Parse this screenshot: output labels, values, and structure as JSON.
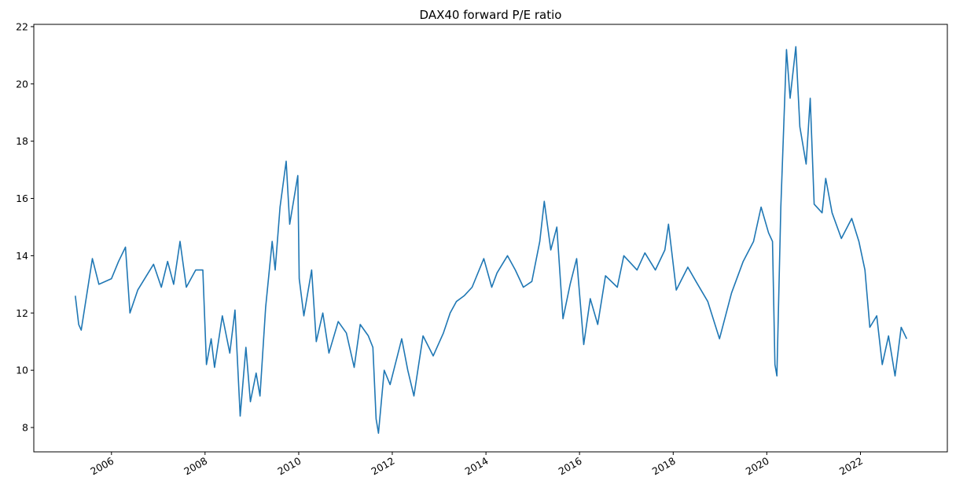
{
  "chart_data": {
    "type": "line",
    "title": "DAX40 forward P/E ratio",
    "xlabel": "",
    "ylabel": "",
    "x_axis": "date",
    "xlim": [
      "2004-05-05",
      "2023-11-10"
    ],
    "ylim": [
      7.15,
      22.08
    ],
    "x_ticks": [
      "2006",
      "2008",
      "2010",
      "2012",
      "2014",
      "2016",
      "2018",
      "2020",
      "2022"
    ],
    "y_ticks": [
      8,
      10,
      12,
      14,
      16,
      18,
      20,
      22
    ],
    "grid": false,
    "legend": "none",
    "line_color": "#1f77b4",
    "series": [
      {
        "points": [
          [
            "2005-03-25",
            12.6
          ],
          [
            "2005-04-20",
            11.6
          ],
          [
            "2005-05-10",
            11.4
          ],
          [
            "2005-08-05",
            13.9
          ],
          [
            "2005-09-25",
            13.0
          ],
          [
            "2006-01-01",
            13.2
          ],
          [
            "2006-02-25",
            13.8
          ],
          [
            "2006-04-20",
            14.3
          ],
          [
            "2006-05-25",
            12.0
          ],
          [
            "2006-07-25",
            12.8
          ],
          [
            "2006-10-01",
            13.3
          ],
          [
            "2006-11-25",
            13.7
          ],
          [
            "2007-01-25",
            12.9
          ],
          [
            "2007-03-15",
            13.8
          ],
          [
            "2007-05-01",
            13.0
          ],
          [
            "2007-06-20",
            14.5
          ],
          [
            "2007-08-08",
            12.9
          ],
          [
            "2007-10-20",
            13.5
          ],
          [
            "2007-12-15",
            13.5
          ],
          [
            "2008-01-12",
            10.2
          ],
          [
            "2008-02-18",
            11.1
          ],
          [
            "2008-03-15",
            10.1
          ],
          [
            "2008-05-15",
            11.9
          ],
          [
            "2008-07-12",
            10.6
          ],
          [
            "2008-08-22",
            12.1
          ],
          [
            "2008-10-01",
            8.4
          ],
          [
            "2008-11-15",
            10.8
          ],
          [
            "2008-12-20",
            8.9
          ],
          [
            "2009-02-03",
            9.9
          ],
          [
            "2009-03-05",
            9.1
          ],
          [
            "2009-04-18",
            12.2
          ],
          [
            "2009-06-08",
            14.5
          ],
          [
            "2009-07-01",
            13.5
          ],
          [
            "2009-08-08",
            15.7
          ],
          [
            "2009-09-25",
            17.3
          ],
          [
            "2009-10-23",
            15.1
          ],
          [
            "2009-12-25",
            16.8
          ],
          [
            "2010-01-05",
            13.2
          ],
          [
            "2010-02-10",
            11.9
          ],
          [
            "2010-04-12",
            13.5
          ],
          [
            "2010-05-18",
            11.0
          ],
          [
            "2010-07-08",
            12.0
          ],
          [
            "2010-08-25",
            10.6
          ],
          [
            "2010-11-05",
            11.7
          ],
          [
            "2011-01-08",
            11.3
          ],
          [
            "2011-03-10",
            10.1
          ],
          [
            "2011-04-26",
            11.6
          ],
          [
            "2011-06-28",
            11.2
          ],
          [
            "2011-08-03",
            10.8
          ],
          [
            "2011-08-28",
            8.3
          ],
          [
            "2011-09-15",
            7.8
          ],
          [
            "2011-10-30",
            10.0
          ],
          [
            "2011-12-15",
            9.5
          ],
          [
            "2012-03-15",
            11.1
          ],
          [
            "2012-05-01",
            10.0
          ],
          [
            "2012-06-18",
            9.1
          ],
          [
            "2012-08-28",
            11.2
          ],
          [
            "2012-11-15",
            10.5
          ],
          [
            "2013-02-03",
            11.3
          ],
          [
            "2013-03-28",
            12.0
          ],
          [
            "2013-05-15",
            12.4
          ],
          [
            "2013-07-15",
            12.6
          ],
          [
            "2013-09-15",
            12.9
          ],
          [
            "2013-12-15",
            13.9
          ],
          [
            "2014-02-15",
            12.9
          ],
          [
            "2014-03-28",
            13.4
          ],
          [
            "2014-06-18",
            14.0
          ],
          [
            "2014-08-18",
            13.5
          ],
          [
            "2014-10-20",
            12.9
          ],
          [
            "2014-12-25",
            13.1
          ],
          [
            "2015-02-25",
            14.5
          ],
          [
            "2015-04-01",
            15.9
          ],
          [
            "2015-05-22",
            14.2
          ],
          [
            "2015-07-08",
            15.0
          ],
          [
            "2015-08-25",
            11.8
          ],
          [
            "2015-10-20",
            13.0
          ],
          [
            "2015-12-10",
            13.9
          ],
          [
            "2016-02-03",
            10.9
          ],
          [
            "2016-03-25",
            12.5
          ],
          [
            "2016-05-22",
            11.6
          ],
          [
            "2016-07-22",
            13.3
          ],
          [
            "2016-10-22",
            12.9
          ],
          [
            "2016-12-12",
            14.0
          ],
          [
            "2017-03-25",
            13.5
          ],
          [
            "2017-05-25",
            14.1
          ],
          [
            "2017-08-15",
            13.5
          ],
          [
            "2017-10-28",
            14.2
          ],
          [
            "2017-11-25",
            15.1
          ],
          [
            "2018-01-25",
            12.8
          ],
          [
            "2018-04-25",
            13.6
          ],
          [
            "2018-06-28",
            13.1
          ],
          [
            "2018-09-28",
            12.4
          ],
          [
            "2018-12-28",
            11.1
          ],
          [
            "2019-04-01",
            12.7
          ],
          [
            "2019-07-01",
            13.8
          ],
          [
            "2019-09-20",
            14.5
          ],
          [
            "2019-11-18",
            15.7
          ],
          [
            "2020-01-15",
            14.8
          ],
          [
            "2020-02-15",
            14.5
          ],
          [
            "2020-03-05",
            10.2
          ],
          [
            "2020-03-20",
            9.8
          ],
          [
            "2020-04-20",
            15.7
          ],
          [
            "2020-06-03",
            21.2
          ],
          [
            "2020-07-01",
            19.5
          ],
          [
            "2020-08-15",
            21.3
          ],
          [
            "2020-09-15",
            18.5
          ],
          [
            "2020-11-03",
            17.2
          ],
          [
            "2020-12-05",
            19.5
          ],
          [
            "2021-01-05",
            15.8
          ],
          [
            "2021-03-08",
            15.5
          ],
          [
            "2021-04-05",
            16.7
          ],
          [
            "2021-05-25",
            15.5
          ],
          [
            "2021-08-05",
            14.6
          ],
          [
            "2021-10-25",
            15.3
          ],
          [
            "2021-12-20",
            14.5
          ],
          [
            "2022-02-05",
            13.5
          ],
          [
            "2022-03-15",
            11.5
          ],
          [
            "2022-05-08",
            11.9
          ],
          [
            "2022-06-20",
            10.2
          ],
          [
            "2022-08-08",
            11.2
          ],
          [
            "2022-09-28",
            9.8
          ],
          [
            "2022-11-15",
            11.5
          ],
          [
            "2022-12-28",
            11.1
          ]
        ]
      }
    ]
  }
}
